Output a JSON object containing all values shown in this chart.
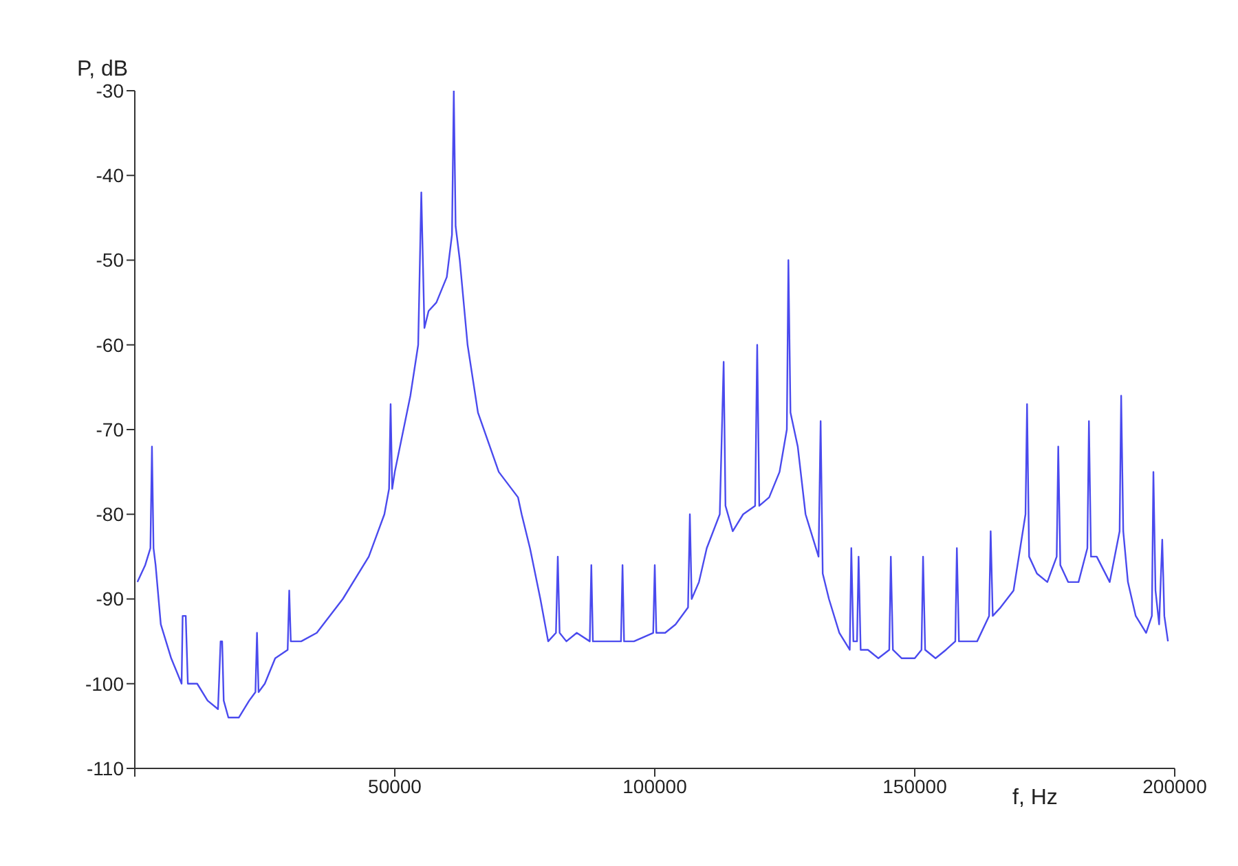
{
  "chart_data": {
    "type": "line",
    "xlabel": "f, Hz",
    "ylabel": "P, dB",
    "x": [
      500,
      2000,
      3000,
      3300,
      3600,
      4000,
      5000,
      7000,
      9000,
      9200,
      9500,
      9800,
      10200,
      12000,
      14000,
      16000,
      16500,
      16800,
      17100,
      18000,
      20000,
      22000,
      23200,
      23500,
      23800,
      25000,
      27000,
      29400,
      29700,
      30000,
      32000,
      35000,
      40000,
      45000,
      48000,
      48900,
      49200,
      49500,
      50000,
      53000,
      54500,
      55100,
      55700,
      56500,
      58000,
      60000,
      61000,
      61350,
      61700,
      62500,
      64000,
      66000,
      70000,
      73700,
      74050,
      74400,
      76000,
      78000,
      79500,
      81000,
      81350,
      81700,
      83000,
      85000,
      87500,
      87800,
      88100,
      90000,
      93500,
      93800,
      94100,
      96000,
      99700,
      100000,
      100300,
      102000,
      104000,
      106400,
      106750,
      107100,
      108500,
      110000,
      112500,
      113250,
      113600,
      115000,
      117000,
      119300,
      119700,
      120100,
      122000,
      124000,
      125400,
      125700,
      126100,
      127500,
      129000,
      131500,
      131900,
      132300,
      133500,
      135500,
      137500,
      137800,
      138200,
      138900,
      139200,
      139600,
      141000,
      143000,
      145100,
      145400,
      145800,
      147500,
      150000,
      151300,
      151600,
      152000,
      154000,
      156000,
      157800,
      158100,
      158500,
      160000,
      162000,
      164300,
      164600,
      165000,
      166500,
      169000,
      171300,
      171600,
      172000,
      173500,
      175500,
      177300,
      177600,
      178000,
      179500,
      181500,
      183200,
      183500,
      183900,
      185000,
      187500,
      189400,
      189700,
      190100,
      191000,
      192500,
      194500,
      195600,
      195900,
      196300,
      197000,
      197600,
      198000,
      198700
    ],
    "values": [
      -88,
      -86,
      -84,
      -72,
      -84,
      -86,
      -93,
      -97,
      -100,
      -92,
      -92,
      -92,
      -100,
      -100,
      -102,
      -103,
      -95,
      -95,
      -102,
      -104,
      -104,
      -102,
      -101,
      -94,
      -101,
      -100,
      -97,
      -96,
      -89,
      -95,
      -95,
      -94,
      -90,
      -85,
      -80,
      -77,
      -67,
      -77,
      -75,
      -66,
      -60,
      -42,
      -58,
      -56,
      -55,
      -52,
      -47,
      -30,
      -46,
      -50,
      -60,
      -68,
      -75,
      -78,
      -79,
      -80,
      -84,
      -90,
      -95,
      -94,
      -85,
      -94,
      -95,
      -94,
      -95,
      -86,
      -95,
      -95,
      -95,
      -86,
      -95,
      -95,
      -94,
      -86,
      -94,
      -94,
      -93,
      -91,
      -80,
      -90,
      -88,
      -84,
      -80,
      -62,
      -79,
      -82,
      -80,
      -79,
      -60,
      -79,
      -78,
      -75,
      -70,
      -50,
      -68,
      -72,
      -80,
      -85,
      -69,
      -87,
      -90,
      -94,
      -96,
      -84,
      -95,
      -95,
      -85,
      -96,
      -96,
      -97,
      -96,
      -85,
      -96,
      -97,
      -97,
      -96,
      -85,
      -96,
      -97,
      -96,
      -95,
      -84,
      -95,
      -95,
      -95,
      -92,
      -82,
      -92,
      -91,
      -89,
      -80,
      -67,
      -85,
      -87,
      -88,
      -85,
      -72,
      -86,
      -88,
      -88,
      -84,
      -69,
      -85,
      -85,
      -88,
      -82,
      -66,
      -82,
      -88,
      -92,
      -94,
      -92,
      -75,
      -89,
      -93,
      -83,
      -92,
      -95
    ],
    "color": "#4a4aee",
    "xlim": [
      0,
      200000
    ],
    "xticks": [
      {
        "value": 0,
        "label": null
      },
      50000,
      100000,
      150000,
      200000
    ],
    "ylim": [
      -110,
      -30
    ],
    "yticks": [
      -110,
      -100,
      -90,
      -80,
      -70,
      -60,
      -50,
      -40,
      -30
    ],
    "grid": false,
    "legend": false,
    "marker": "none",
    "line_style": "solid"
  }
}
